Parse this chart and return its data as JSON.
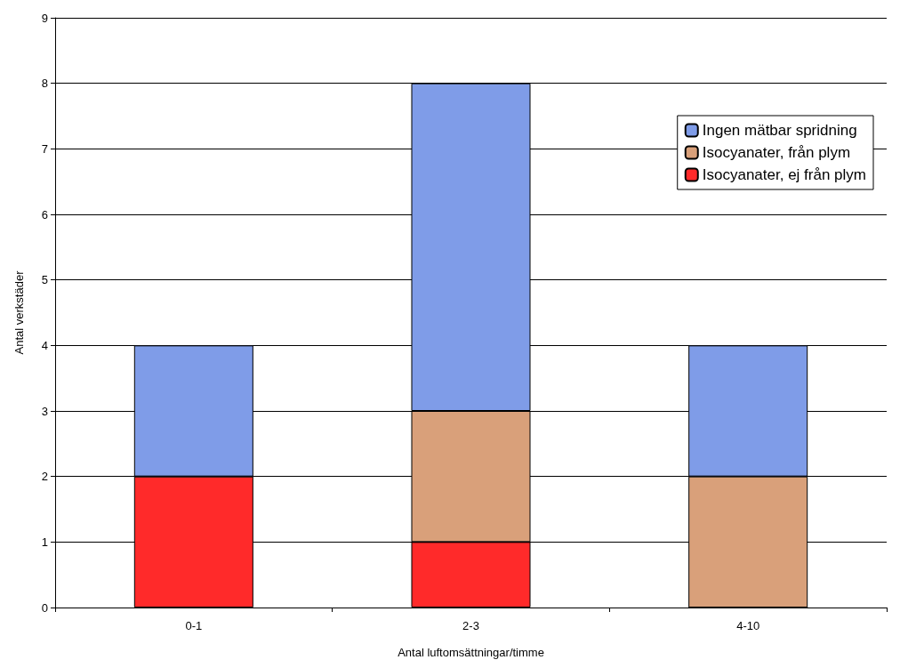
{
  "chart_data": {
    "type": "bar",
    "xlabel": "Antal luftomsättningar/timme",
    "ylabel": "Antal verkstäder",
    "categories": [
      "0-1",
      "2-3",
      "4-10"
    ],
    "stacked": true,
    "series": [
      {
        "name": "Isocyanater, ej från plym",
        "color": "#ff2a2a",
        "values": [
          2,
          1,
          0
        ]
      },
      {
        "name": "Isocyanater, från plym",
        "color": "#d9a07a",
        "values": [
          0,
          2,
          2
        ]
      },
      {
        "name": "Ingen mätbar spridning",
        "color": "#7f9ce8",
        "values": [
          2,
          5,
          2
        ]
      }
    ],
    "ylim": [
      0,
      9
    ],
    "yticks": [
      0,
      1,
      2,
      3,
      4,
      5,
      6,
      7,
      8,
      9
    ],
    "grid": "y",
    "legend": "top right"
  }
}
